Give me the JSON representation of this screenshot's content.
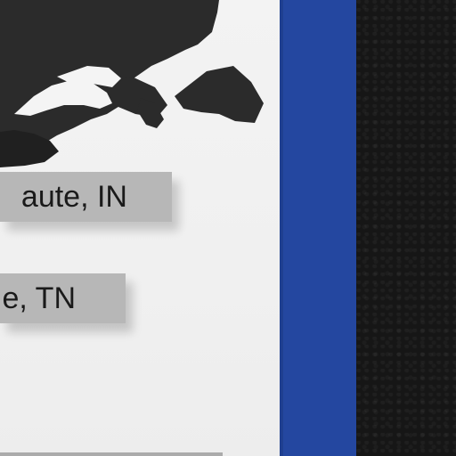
{
  "labels": {
    "first": "aute, IN",
    "second": "e, TN"
  },
  "colors": {
    "paper": "#f0f0f0",
    "label_box": "#b7b7b7",
    "blue_stripe": "#2447a0",
    "dark_background": "#161616",
    "map_fill": "#2b2b2b"
  }
}
